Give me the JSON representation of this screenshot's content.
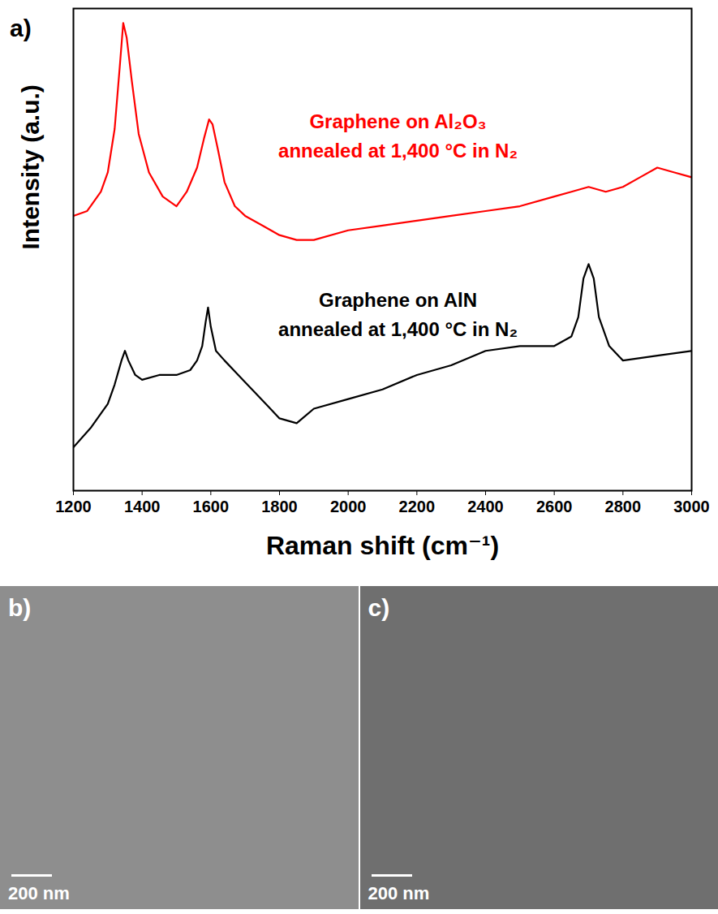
{
  "chart_data": {
    "type": "line",
    "panel": "a)",
    "x_label": "Raman shift (cm⁻¹)",
    "y_label": "Intensity (a.u.)",
    "xlim": [
      1200,
      3000
    ],
    "xticks": [
      1200,
      1400,
      1600,
      1800,
      2000,
      2200,
      2400,
      2600,
      2800,
      3000
    ],
    "ylim": [
      0,
      100
    ],
    "tick_labels": "x",
    "grid": false,
    "series": [
      {
        "color": "#ff0000",
        "x": [
          1200,
          1240,
          1280,
          1300,
          1320,
          1335,
          1345,
          1355,
          1370,
          1390,
          1420,
          1460,
          1500,
          1530,
          1560,
          1580,
          1595,
          1605,
          1620,
          1640,
          1670,
          1700,
          1750,
          1800,
          1850,
          1900,
          2000,
          2100,
          2200,
          2300,
          2400,
          2500,
          2600,
          2650,
          2700,
          2750,
          2800,
          2850,
          2900,
          2950,
          3000
        ],
        "values": [
          57,
          58,
          62,
          66,
          75,
          88,
          97,
          94,
          85,
          74,
          66,
          61,
          59,
          62,
          67,
          73,
          77,
          76,
          71,
          64,
          59,
          57,
          55,
          53,
          52,
          52,
          54,
          55,
          56,
          57,
          58,
          59,
          61,
          62,
          63,
          62,
          63,
          65,
          67,
          66,
          65
        ]
      },
      {
        "color": "#000000",
        "x": [
          1200,
          1250,
          1300,
          1320,
          1340,
          1350,
          1360,
          1380,
          1400,
          1450,
          1500,
          1540,
          1560,
          1575,
          1585,
          1592,
          1600,
          1615,
          1640,
          1680,
          1720,
          1760,
          1800,
          1850,
          1900,
          2000,
          2100,
          2200,
          2300,
          2400,
          2500,
          2600,
          2650,
          2670,
          2685,
          2700,
          2715,
          2730,
          2760,
          2800,
          2900,
          3000
        ],
        "values": [
          9,
          13,
          18,
          22,
          27,
          29,
          27,
          24,
          23,
          24,
          24,
          25,
          27,
          30,
          35,
          38,
          34,
          29,
          27,
          24,
          21,
          18,
          15,
          14,
          17,
          19,
          21,
          24,
          26,
          29,
          30,
          30,
          32,
          36,
          44,
          47,
          44,
          36,
          30,
          27,
          28,
          29
        ]
      }
    ],
    "annotations": [
      {
        "text": [
          "Graphene on Al₂O₃",
          "annealed at 1,400 °C in N₂"
        ],
        "x": 2145,
        "y": 74,
        "color": "#ff0000"
      },
      {
        "text": [
          "Graphene on AlN",
          "annealed at 1,400 °C in N₂"
        ],
        "x": 2145,
        "y": 37,
        "color": "#000000"
      }
    ]
  },
  "images": [
    {
      "label": "b)",
      "scale_bar": "200 nm"
    },
    {
      "label": "c)",
      "scale_bar": "200 nm"
    }
  ]
}
